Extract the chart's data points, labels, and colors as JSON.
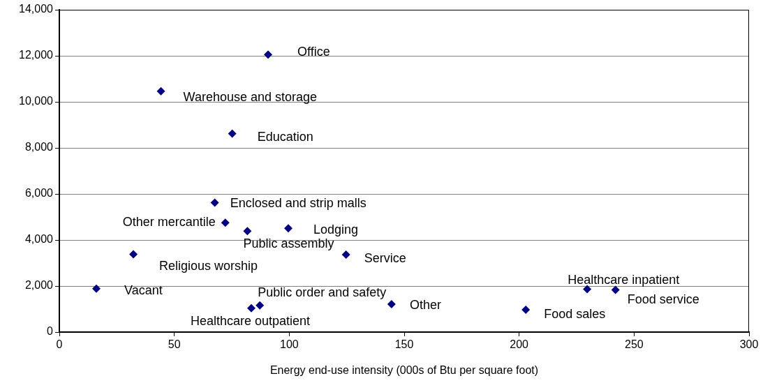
{
  "chart_data": {
    "type": "scatter",
    "xlabel": "Energy end-use intensity (000s of Btu per square foot)",
    "xlim": [
      0,
      300
    ],
    "xticks": [
      0,
      50,
      100,
      150,
      200,
      250,
      300
    ],
    "ylim": [
      0,
      14000
    ],
    "yticks": [
      {
        "value": 0,
        "label": "0"
      },
      {
        "value": 2000,
        "label": "2,000"
      },
      {
        "value": 4000,
        "label": "4,000"
      },
      {
        "value": 6000,
        "label": "6,000"
      },
      {
        "value": 8000,
        "label": "8,000"
      },
      {
        "value": 10000,
        "label": "10,000"
      },
      {
        "value": 12000,
        "label": "12,000"
      },
      {
        "value": 14000,
        "label": "14,000"
      }
    ],
    "grid": "y",
    "legend": false,
    "marker": "diamond",
    "series": [
      {
        "name": "Office",
        "color": "#000080",
        "x": [
          90.8
        ],
        "values": [
          12050
        ]
      },
      {
        "name": "Warehouse and storage",
        "color": "#000080",
        "x": [
          44.2
        ],
        "values": [
          10460
        ]
      },
      {
        "name": "Education",
        "color": "#000080",
        "x": [
          75.2
        ],
        "values": [
          8620
        ]
      },
      {
        "name": "Enclosed and strip malls",
        "color": "#000080",
        "x": [
          67.6
        ],
        "values": [
          5620
        ]
      },
      {
        "name": "Other mercantile",
        "color": "#000080",
        "x": [
          72.2
        ],
        "values": [
          4750
        ]
      },
      {
        "name": "Public assembly",
        "color": "#000080",
        "x": [
          81.8
        ],
        "values": [
          4390
        ]
      },
      {
        "name": "Lodging",
        "color": "#000080",
        "x": [
          99.6
        ],
        "values": [
          4510
        ]
      },
      {
        "name": "Religious worship",
        "color": "#000080",
        "x": [
          32.2
        ],
        "values": [
          3380
        ]
      },
      {
        "name": "Service",
        "color": "#000080",
        "x": [
          124.7
        ],
        "values": [
          3360
        ]
      },
      {
        "name": "Vacant",
        "color": "#000080",
        "x": [
          16.1
        ],
        "values": [
          1890
        ]
      },
      {
        "name": "Public order and safety",
        "color": "#000080",
        "x": [
          87.2
        ],
        "values": [
          1160
        ]
      },
      {
        "name": "Healthcare outpatient",
        "color": "#000080",
        "x": [
          83.5
        ],
        "values": [
          1040
        ]
      },
      {
        "name": "Other",
        "color": "#000080",
        "x": [
          144.5
        ],
        "values": [
          1210
        ]
      },
      {
        "name": "Food sales",
        "color": "#000080",
        "x": [
          202.9
        ],
        "values": [
          970
        ]
      },
      {
        "name": "Healthcare inpatient",
        "color": "#000080",
        "x": [
          229.6
        ],
        "values": [
          1860
        ]
      },
      {
        "name": "Food service",
        "color": "#000080",
        "x": [
          241.9
        ],
        "values": [
          1830
        ]
      }
    ]
  }
}
